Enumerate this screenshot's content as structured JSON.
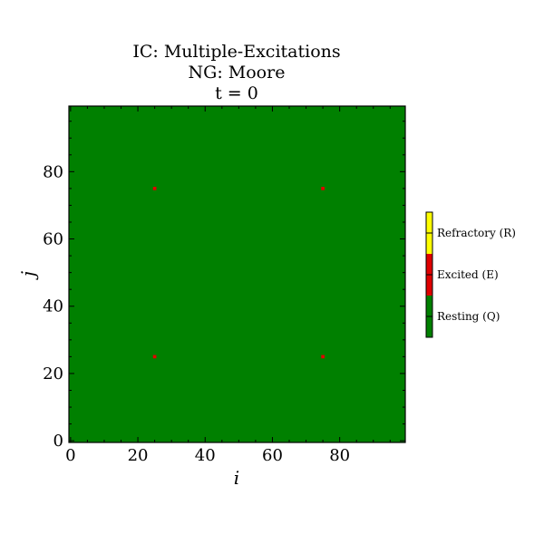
{
  "chart_data": {
    "type": "heatmap",
    "title_lines": [
      "IC: Multiple-Excitations",
      "NG: Moore",
      "t = 0"
    ],
    "xlabel": "i",
    "ylabel": "j",
    "xlim": [
      0,
      99
    ],
    "ylim": [
      0,
      99
    ],
    "x_ticks": [
      0,
      20,
      40,
      60,
      80
    ],
    "y_ticks": [
      0,
      20,
      40,
      60,
      80
    ],
    "x_tick_labels": [
      "0",
      "20",
      "40",
      "60",
      "80"
    ],
    "y_tick_labels": [
      "0",
      "20",
      "40",
      "60",
      "80"
    ],
    "grid": false,
    "background_state": "Resting (Q)",
    "excited_cells": [
      {
        "i": 25,
        "j": 25
      },
      {
        "i": 75,
        "j": 25
      },
      {
        "i": 25,
        "j": 75
      },
      {
        "i": 75,
        "j": 75
      }
    ],
    "colorbar": {
      "placement": "right",
      "states": [
        {
          "label": "Resting (Q)",
          "color": "#008000"
        },
        {
          "label": "Excited (E)",
          "color": "#e00000"
        },
        {
          "label": "Refractory (R)",
          "color": "#ffff00"
        }
      ]
    }
  }
}
